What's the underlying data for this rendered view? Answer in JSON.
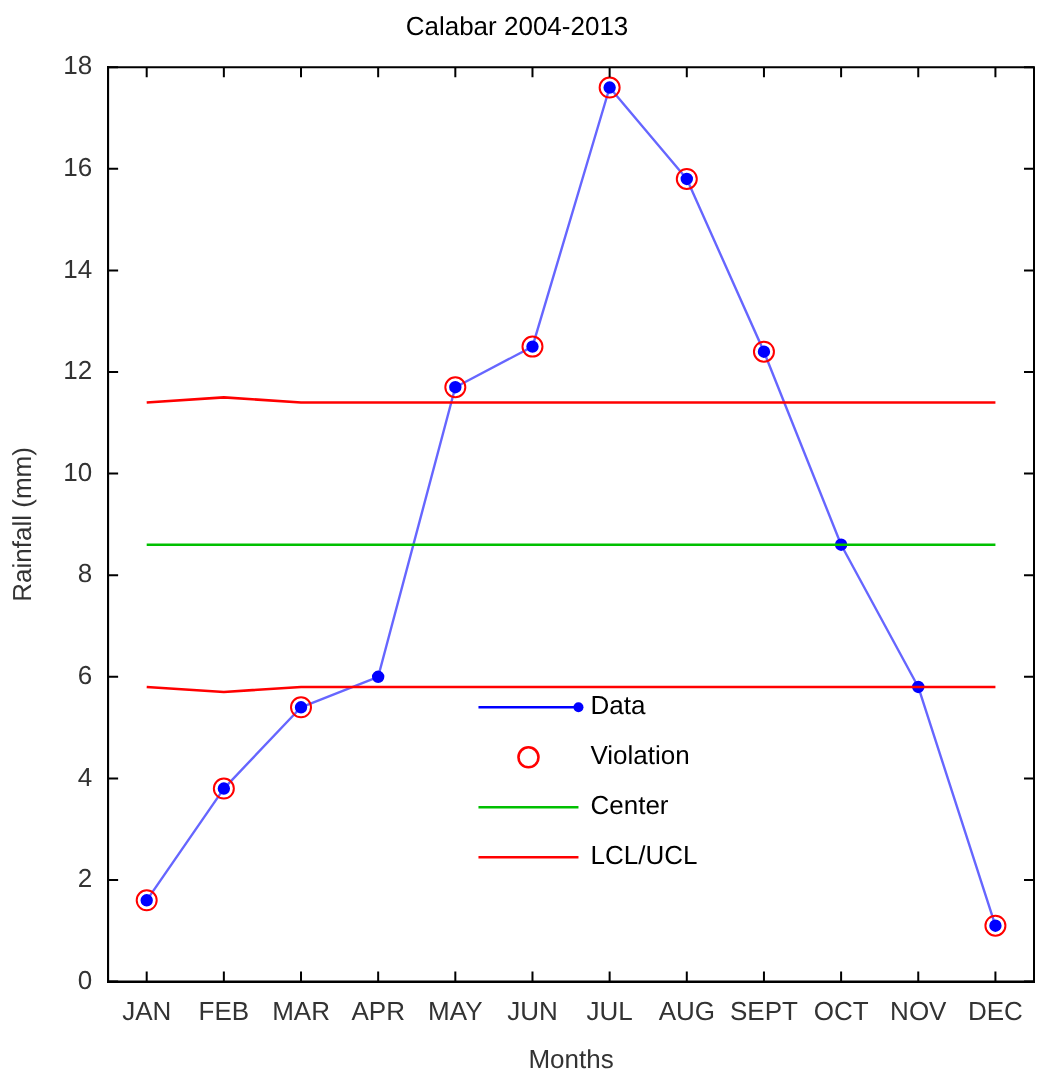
{
  "chart_data": {
    "type": "line",
    "title": "Calabar 2004-2013",
    "xlabel": "Months",
    "ylabel": "Rainfall (mm)",
    "categories": [
      "JAN",
      "FEB",
      "MAR",
      "APR",
      "MAY",
      "JUN",
      "JUL",
      "AUG",
      "SEPT",
      "OCT",
      "NOV",
      "DEC"
    ],
    "series": [
      {
        "name": "Data",
        "color": "#0000ff",
        "marker": "circle",
        "values": [
          1.6,
          3.8,
          5.4,
          6.0,
          11.7,
          12.5,
          17.6,
          15.8,
          12.4,
          8.6,
          5.8,
          1.1
        ]
      },
      {
        "name": "Violation",
        "type": "scatter",
        "color": "#ff0000",
        "marker": "circle",
        "values": [
          1.6,
          3.8,
          5.4,
          null,
          11.7,
          12.5,
          17.6,
          15.8,
          12.4,
          null,
          null,
          1.1
        ]
      },
      {
        "name": "Center",
        "color": "#00c000",
        "marker": "none",
        "values": [
          8.6,
          8.6,
          8.6,
          8.6,
          8.6,
          8.6,
          8.6,
          8.6,
          8.6,
          8.6,
          8.6,
          8.6
        ]
      },
      {
        "name": "LCL/UCL",
        "color": "#ff0000",
        "marker": "none",
        "values": [
          11.4,
          11.5,
          11.4,
          11.4,
          11.4,
          11.4,
          11.4,
          11.4,
          11.4,
          11.4,
          11.4,
          11.4
        ]
      },
      {
        "color": "#ff0000",
        "marker": "none",
        "values": [
          5.8,
          5.7,
          5.8,
          5.8,
          5.8,
          5.8,
          5.8,
          5.8,
          5.8,
          5.8,
          5.8,
          5.8
        ]
      }
    ],
    "ylim": [
      0,
      18
    ],
    "yticks": [
      0,
      2,
      4,
      6,
      8,
      10,
      12,
      14,
      16,
      18
    ],
    "grid": false,
    "legend": "bottom"
  }
}
